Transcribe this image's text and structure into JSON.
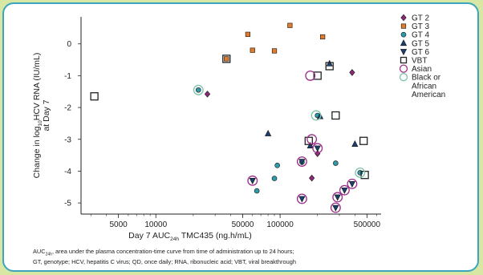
{
  "chart_data": {
    "type": "scatter",
    "xlabel_prefix": "Day 7 AUC",
    "xlabel_sub": "24h",
    "xlabel_suffix": " TMC435 (ng.h/mL)",
    "ylabel_line1_pre": "Change in log",
    "ylabel_line1_sub": "10",
    "ylabel_line1_post": "HCV RNA (IU/mL)",
    "ylabel_line2": "at Day 7",
    "x_scale": "log",
    "xlim": [
      2500,
      650000
    ],
    "ylim": [
      -5.35,
      0.85
    ],
    "x_ticks": [
      {
        "value": 5000,
        "label": "5000"
      },
      {
        "value": 10000,
        "label": "10000"
      },
      {
        "value": 50000,
        "label": "50000"
      },
      {
        "value": 100000,
        "label": "100000"
      },
      {
        "value": 500000,
        "label": "500000"
      }
    ],
    "y_ticks": [
      {
        "value": 0,
        "label": "0"
      },
      {
        "value": -1,
        "label": "-1"
      },
      {
        "value": -2,
        "label": "-2"
      },
      {
        "value": -3,
        "label": "-3"
      },
      {
        "value": -4,
        "label": "-4"
      },
      {
        "value": -5,
        "label": "-5"
      }
    ],
    "series": [
      {
        "name": "GT 2",
        "marker": "diamond",
        "color": "#8b2a78",
        "points": [
          [
            26000,
            -1.58
          ],
          [
            380000,
            -0.9
          ],
          [
            200000,
            -3.45
          ],
          [
            180000,
            -4.22
          ]
        ]
      },
      {
        "name": "GT 3",
        "marker": "square",
        "color": "#e07b2c",
        "points": [
          [
            37000,
            -0.47
          ],
          [
            55000,
            0.3
          ],
          [
            60000,
            -0.2
          ],
          [
            90000,
            -0.22
          ],
          [
            120000,
            0.58
          ],
          [
            220000,
            0.22
          ]
        ]
      },
      {
        "name": "GT 4",
        "marker": "circle",
        "color": "#2f9aaa",
        "points": [
          [
            22000,
            -1.45
          ],
          [
            65000,
            -4.62
          ],
          [
            90000,
            -4.23
          ],
          [
            95000,
            -3.82
          ],
          [
            150000,
            -3.72
          ],
          [
            200000,
            -2.25
          ],
          [
            280000,
            -3.75
          ],
          [
            440000,
            -4.05
          ]
        ]
      },
      {
        "name": "GT 5",
        "marker": "triangle-up",
        "color": "#1c3f6e",
        "points": [
          [
            80000,
            -2.82
          ],
          [
            175000,
            -3.2
          ],
          [
            210000,
            -2.28
          ],
          [
            250000,
            -0.62
          ],
          [
            400000,
            -3.15
          ]
        ]
      },
      {
        "name": "GT 6",
        "marker": "triangle-down",
        "color": "#1c3f6e",
        "points": [
          [
            60000,
            -4.3
          ],
          [
            150000,
            -4.87
          ],
          [
            150000,
            -3.7
          ],
          [
            200000,
            -3.28
          ],
          [
            280000,
            -5.15
          ],
          [
            290000,
            -4.82
          ],
          [
            330000,
            -4.6
          ],
          [
            380000,
            -4.4
          ]
        ]
      }
    ],
    "vbt": [
      [
        3200,
        -1.65
      ],
      [
        37000,
        -0.47
      ],
      [
        170000,
        -3.05
      ],
      [
        200000,
        -1.0
      ],
      [
        250000,
        -0.7
      ],
      [
        280000,
        -2.25
      ],
      [
        470000,
        -3.05
      ],
      [
        480000,
        -4.12
      ]
    ],
    "asian": [
      [
        60000,
        -4.3
      ],
      [
        150000,
        -4.87
      ],
      [
        150000,
        -3.7
      ],
      [
        175000,
        -1.0
      ],
      [
        180000,
        -3.0
      ],
      [
        200000,
        -3.28
      ],
      [
        280000,
        -5.15
      ],
      [
        290000,
        -4.82
      ],
      [
        330000,
        -4.6
      ],
      [
        380000,
        -4.4
      ]
    ],
    "black_or_african_american": [
      [
        22000,
        -1.45
      ],
      [
        195000,
        -2.25
      ],
      [
        440000,
        -4.05
      ]
    ],
    "legend": [
      {
        "label": "GT 2",
        "marker": "diamond",
        "color": "#8b2a78"
      },
      {
        "label": "GT 3",
        "marker": "square",
        "color": "#e07b2c"
      },
      {
        "label": "GT 4",
        "marker": "circle",
        "color": "#2f9aaa"
      },
      {
        "label": "GT 5",
        "marker": "triangle-up",
        "color": "#1c3f6e"
      },
      {
        "label": "GT 6",
        "marker": "triangle-down",
        "color": "#1c3f6e"
      },
      {
        "label": "VBT",
        "marker": "open-square",
        "color": "#222222"
      },
      {
        "label": "Asian",
        "marker": "open-circle",
        "color": "#9b2c8a"
      },
      {
        "label": "Black or",
        "marker": "open-circle",
        "color": "#7fc3a8"
      }
    ],
    "legend_continuation": [
      "African",
      "American"
    ],
    "legend_position": "right",
    "grid": false
  },
  "footnote": {
    "auc": "AUC",
    "auc_sub": "24h",
    "line1_rest": ", area under the plasma concentration-time curve from time of administration up to 24 hours;",
    "line2": "GT, genotype; HCV, hepatitis C virus; QD, once daily;  RNA, ribonucleic acid; VBT, viral breakthrough"
  }
}
